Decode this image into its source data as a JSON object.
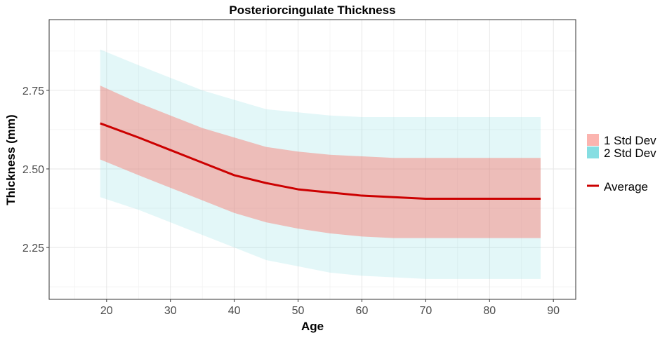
{
  "chart_data": {
    "type": "area",
    "title": "Posteriorcingulate Thickness",
    "xlabel": "Age",
    "ylabel": "Thickness (mm)",
    "xlim": [
      11,
      93.5
    ],
    "ylim": [
      2.085,
      2.975
    ],
    "x_ticks": [
      20,
      30,
      40,
      50,
      60,
      70,
      80,
      90
    ],
    "y_ticks": [
      2.25,
      2.5,
      2.75
    ],
    "x_tick_labels": [
      "20",
      "30",
      "40",
      "50",
      "60",
      "70",
      "80",
      "90"
    ],
    "y_tick_labels": [
      "2.25",
      "2.50",
      "2.75"
    ],
    "grid": true,
    "legend_position": "right",
    "x": [
      19,
      25,
      30,
      35,
      40,
      45,
      50,
      55,
      60,
      65,
      70,
      75,
      80,
      85,
      88
    ],
    "series": [
      {
        "name": "2 Std Dev",
        "kind": "band",
        "color": "#7fdce0",
        "lower": [
          2.41,
          2.37,
          2.33,
          2.29,
          2.25,
          2.21,
          2.19,
          2.17,
          2.16,
          2.155,
          2.15,
          2.15,
          2.15,
          2.15,
          2.15
        ],
        "upper": [
          2.88,
          2.83,
          2.79,
          2.75,
          2.72,
          2.69,
          2.68,
          2.67,
          2.665,
          2.665,
          2.665,
          2.665,
          2.665,
          2.665,
          2.665
        ]
      },
      {
        "name": "1 Std Dev",
        "kind": "band",
        "color": "#f8766d",
        "lower": [
          2.53,
          2.48,
          2.44,
          2.4,
          2.36,
          2.33,
          2.31,
          2.295,
          2.285,
          2.28,
          2.28,
          2.28,
          2.28,
          2.28,
          2.28
        ],
        "upper": [
          2.765,
          2.71,
          2.67,
          2.63,
          2.6,
          2.57,
          2.555,
          2.545,
          2.54,
          2.535,
          2.535,
          2.535,
          2.535,
          2.535,
          2.535
        ]
      },
      {
        "name": "Average",
        "kind": "line",
        "color": "#cc0000",
        "values": [
          2.645,
          2.6,
          2.56,
          2.52,
          2.48,
          2.455,
          2.435,
          2.425,
          2.415,
          2.41,
          2.405,
          2.405,
          2.405,
          2.405,
          2.405
        ]
      }
    ],
    "legend": [
      {
        "label": "1 Std Dev",
        "kind": "fill",
        "color": "#f8766d"
      },
      {
        "label": "2 Std Dev",
        "kind": "fill",
        "color": "#7fdce0"
      },
      {
        "label": "Average",
        "kind": "line",
        "color": "#cc0000"
      }
    ]
  }
}
